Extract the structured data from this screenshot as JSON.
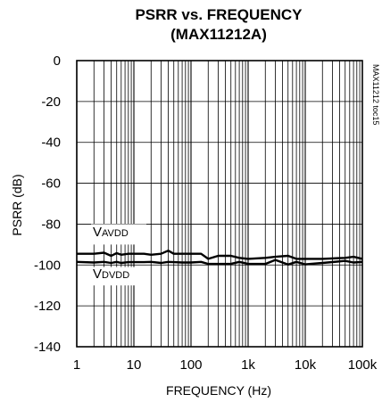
{
  "chart_data": {
    "type": "line",
    "title": "PSRR vs. FREQUENCY",
    "subtitle": "(MAX11212A)",
    "xlabel": "FREQUENCY (Hz)",
    "ylabel": "PSRR (dB)",
    "x_scale": "log",
    "xlim": [
      1,
      100000
    ],
    "ylim": [
      -140,
      0
    ],
    "grid": true,
    "x_ticks": [
      1,
      10,
      100,
      1000,
      10000,
      100000
    ],
    "x_tick_labels": [
      "1",
      "10",
      "100",
      "1k",
      "10k",
      "100k"
    ],
    "y_ticks": [
      0,
      -20,
      -40,
      -60,
      -80,
      -100,
      -120,
      -140
    ],
    "y_tick_labels": [
      "0",
      "-20",
      "-40",
      "-60",
      "-80",
      "-100",
      "-120",
      "-140"
    ],
    "figure_tag": "MAX11212 toc15",
    "series": [
      {
        "name": "VAVDD",
        "label_main": "V",
        "label_sub": "AVDD",
        "x": [
          1,
          2,
          3,
          4,
          5,
          6,
          8,
          10,
          15,
          20,
          30,
          40,
          50,
          70,
          100,
          150,
          200,
          300,
          500,
          700,
          1000,
          2000,
          3000,
          5000,
          7000,
          10000,
          20000,
          50000,
          70000,
          100000
        ],
        "y": [
          -94.5,
          -94.5,
          -94,
          -95.5,
          -94.2,
          -95,
          -94.5,
          -94.5,
          -94.5,
          -95,
          -94.5,
          -93,
          -94.5,
          -94.5,
          -94.5,
          -94.5,
          -97,
          -95.5,
          -95.5,
          -96.5,
          -97,
          -96.5,
          -96,
          -95.5,
          -97,
          -97,
          -97,
          -96.5,
          -96,
          -97
        ]
      },
      {
        "name": "VDVDD",
        "label_main": "V",
        "label_sub": "DVDD",
        "x": [
          1,
          2,
          3,
          4,
          5,
          6,
          8,
          10,
          15,
          20,
          30,
          40,
          50,
          70,
          100,
          150,
          200,
          300,
          500,
          700,
          1000,
          2000,
          3000,
          5000,
          7000,
          10000,
          20000,
          50000,
          70000,
          100000
        ],
        "y": [
          -98.5,
          -98.8,
          -98.5,
          -99,
          -98.5,
          -99,
          -98.6,
          -98.6,
          -98.6,
          -98.5,
          -99,
          -98.5,
          -98.6,
          -98.8,
          -98.8,
          -98.5,
          -99.5,
          -99.5,
          -99.5,
          -98.5,
          -99.5,
          -99.5,
          -97.5,
          -99.8,
          -98.5,
          -99.7,
          -99,
          -98,
          -98.8,
          -98.5
        ]
      }
    ]
  }
}
